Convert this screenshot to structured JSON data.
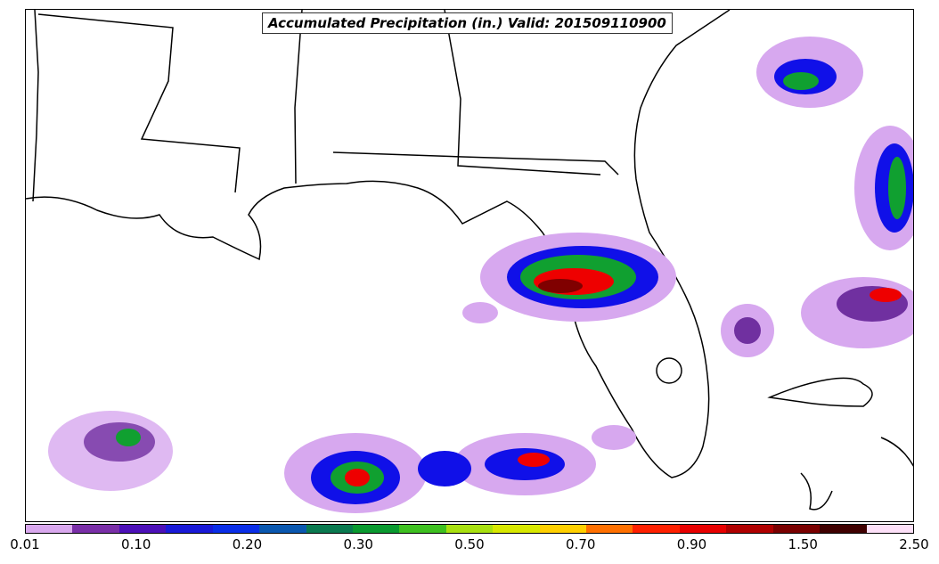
{
  "map": {
    "title": "Accumulated Precipitation (in.) Valid: 201509110900",
    "colors": {
      "light_purple": "#d7a8ef",
      "purple": "#7030a0",
      "indigo": "#3a00c8",
      "blue": "#1010e8",
      "green": "#10a030",
      "yellow": "#e8e800",
      "orange": "#ff7000",
      "red": "#ee0000",
      "dark_red": "#800000"
    }
  },
  "legend": {
    "colors": [
      "#d9a8ee",
      "#7a2fa8",
      "#4c10b8",
      "#1a1ad8",
      "#0a2ee8",
      "#0a58b0",
      "#0a7a50",
      "#0a9a30",
      "#3ec020",
      "#a8e010",
      "#d8e800",
      "#ffd000",
      "#ff7000",
      "#ff2000",
      "#e80000",
      "#b00000",
      "#7a0000",
      "#400000",
      "#fde0f8"
    ],
    "ticks": [
      {
        "label": "0.01",
        "pos": 0
      },
      {
        "label": "0.10",
        "pos": 2
      },
      {
        "label": "0.20",
        "pos": 4
      },
      {
        "label": "0.30",
        "pos": 6
      },
      {
        "label": "0.50",
        "pos": 8
      },
      {
        "label": "0.70",
        "pos": 10
      },
      {
        "label": "0.90",
        "pos": 12
      },
      {
        "label": "1.50",
        "pos": 14
      },
      {
        "label": "2.50",
        "pos": 16
      }
    ]
  }
}
